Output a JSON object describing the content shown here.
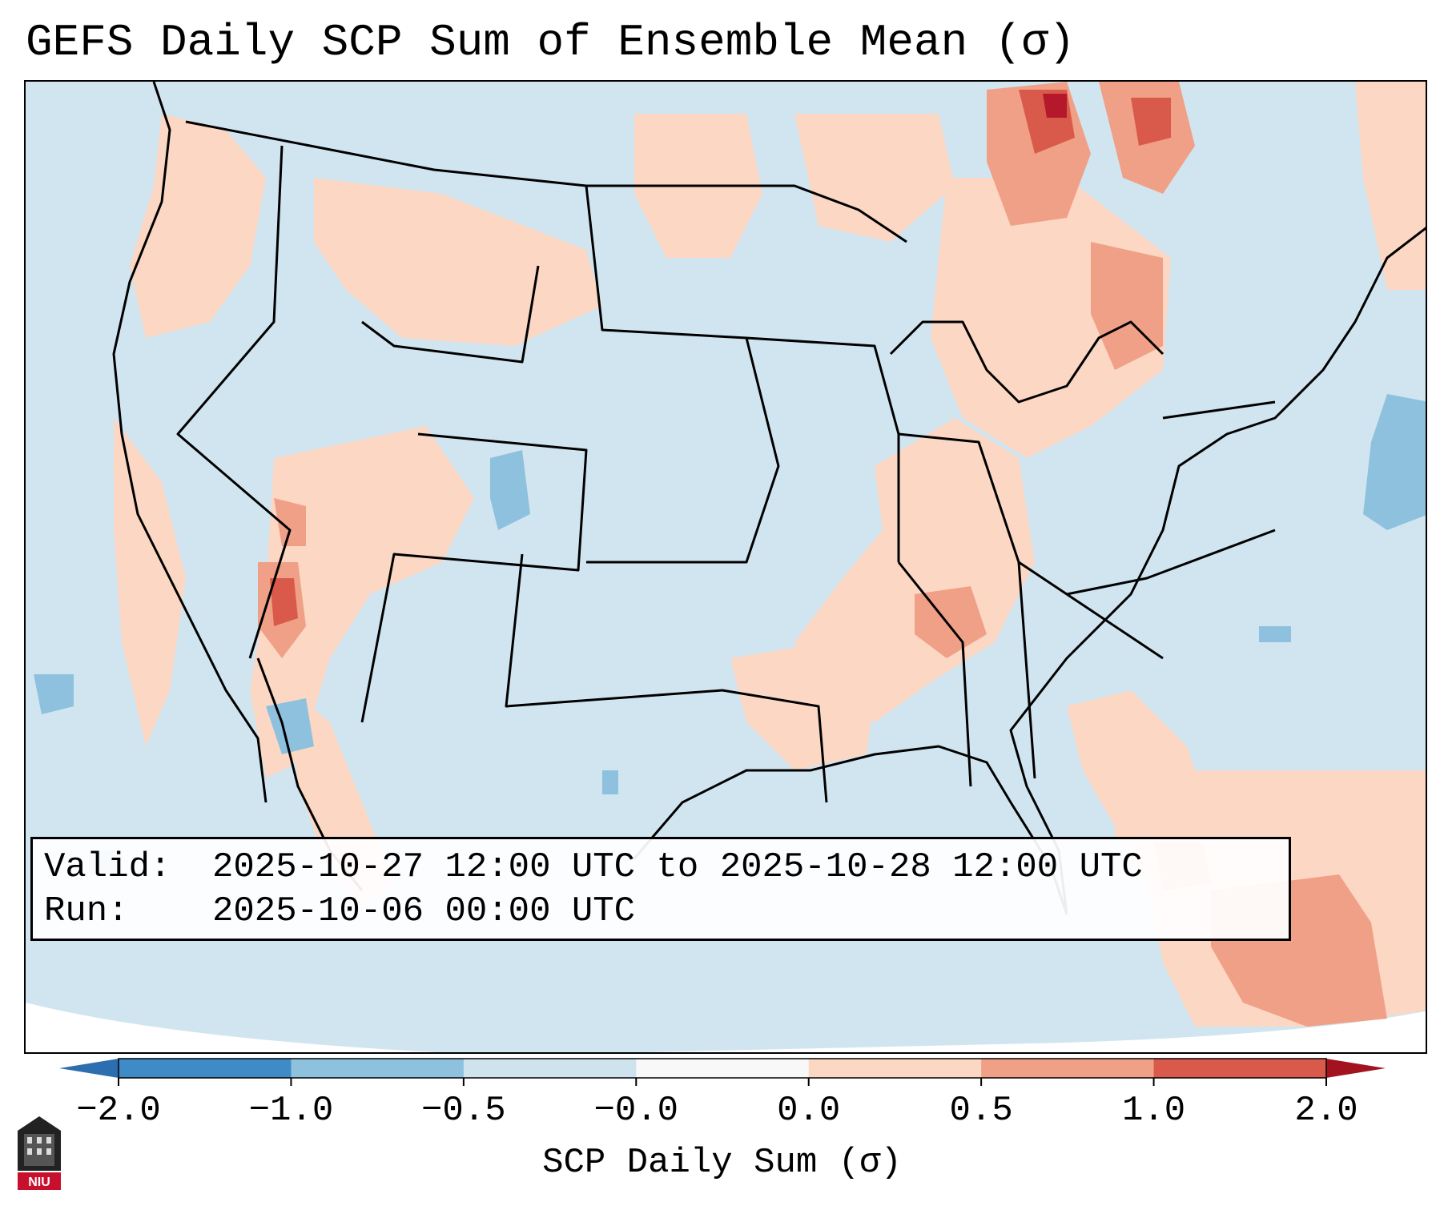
{
  "title": "GEFS Daily SCP Sum of Ensemble Mean (σ)",
  "info": {
    "valid_label": "Valid:",
    "valid_value": "2025-10-27 12:00 UTC to 2025-10-28 12:00 UTC",
    "run_label": "Run:",
    "run_value": "2025-10-06 00:00 UTC"
  },
  "colorbar": {
    "label": "SCP Daily Sum (σ)",
    "ticks": [
      "−2.0",
      "−1.0",
      "−0.5",
      "−0.0",
      "0.0",
      "0.5",
      "1.0",
      "2.0"
    ],
    "bin_colors": [
      "#3f8bc7",
      "#8dc1de",
      "#cfe3ef",
      "#f8f8f8",
      "#fbd7c4",
      "#f0a086",
      "#d95a4b",
      "#b5182b"
    ],
    "extend_low_color": "#2c6eb0",
    "extend_high_color": "#a3131f"
  },
  "map": {
    "region": "Continental United States",
    "background_color": "#d1e5f0",
    "outside_color": "#ffffff",
    "anomalies": [
      {
        "area": "Washington-Oregon coast",
        "category": "0.0 to 0.5"
      },
      {
        "area": "Idaho-Montana",
        "category": "0.0 to 0.5"
      },
      {
        "area": "Southern Nevada",
        "category": "1.0 to 2.0"
      },
      {
        "area": "Arizona-Utah",
        "category": "0.0 to 0.5"
      },
      {
        "area": "Colorado",
        "category": "-1.0 to -0.5"
      },
      {
        "area": "Ohio-Mississippi Valley",
        "category": "0.0 to 0.5"
      },
      {
        "area": "Ontario-Quebec",
        "category": "0.5 to 1.0"
      },
      {
        "area": "Florida-Bahamas",
        "category": "0.0 to 0.5"
      },
      {
        "area": "Western Atlantic",
        "category": "-1.0 to -0.5"
      }
    ]
  },
  "logo": {
    "text": "NIU"
  }
}
